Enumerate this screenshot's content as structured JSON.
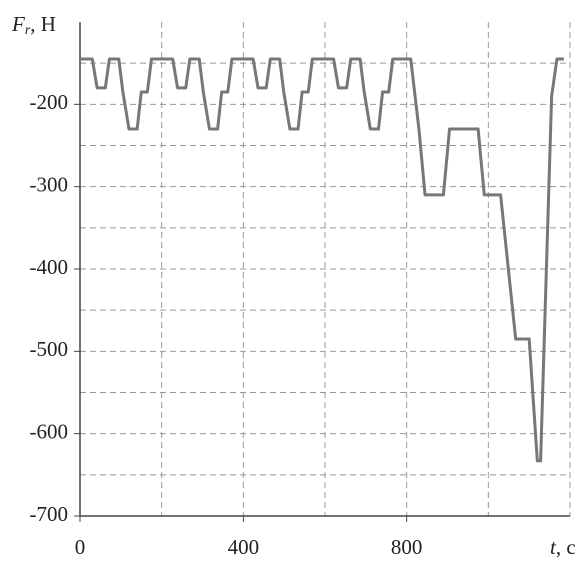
{
  "chart_data": {
    "type": "line",
    "ylabel": {
      "main": "F",
      "sub": "r",
      "unit": ", Н"
    },
    "xlabel": {
      "main": "t",
      "unit": ", с"
    },
    "x": [
      0,
      30,
      42,
      62,
      72,
      95,
      105,
      120,
      140,
      150,
      165,
      175,
      227,
      239,
      259,
      269,
      292,
      302,
      317,
      337,
      347,
      362,
      372,
      424,
      436,
      456,
      466,
      489,
      499,
      514,
      534,
      544,
      559,
      569,
      621,
      633,
      653,
      663,
      686,
      696,
      711,
      731,
      741,
      756,
      766,
      810,
      830,
      845,
      890,
      905,
      975,
      990,
      1030,
      1067,
      1100,
      1120,
      1128,
      1155,
      1168,
      1185
    ],
    "series": [
      {
        "color": "#777777",
        "values": [
          -145,
          -145,
          -180,
          -180,
          -145,
          -145,
          -185,
          -230,
          -230,
          -185,
          -185,
          -145,
          -145,
          -180,
          -180,
          -145,
          -145,
          -185,
          -230,
          -230,
          -185,
          -185,
          -145,
          -145,
          -180,
          -180,
          -145,
          -145,
          -185,
          -230,
          -230,
          -185,
          -185,
          -145,
          -145,
          -180,
          -180,
          -145,
          -145,
          -185,
          -230,
          -230,
          -185,
          -185,
          -145,
          -145,
          -230,
          -310,
          -310,
          -230,
          -230,
          -310,
          -310,
          -485,
          -485,
          -633,
          -633,
          -190,
          -145,
          -145
        ]
      }
    ],
    "xlim": [
      0,
      1200
    ],
    "xticks": [
      0,
      400,
      800
    ],
    "xgrid": [
      200,
      400,
      600,
      800,
      1000,
      1200
    ],
    "ylim": [
      -700,
      -100
    ],
    "yticks": [
      -200,
      -300,
      -400,
      -500,
      -600,
      -700
    ],
    "ygrid": [
      -150,
      -200,
      -250,
      -300,
      -350,
      -400,
      -450,
      -500,
      -550,
      -600,
      -650
    ],
    "grid": true
  }
}
